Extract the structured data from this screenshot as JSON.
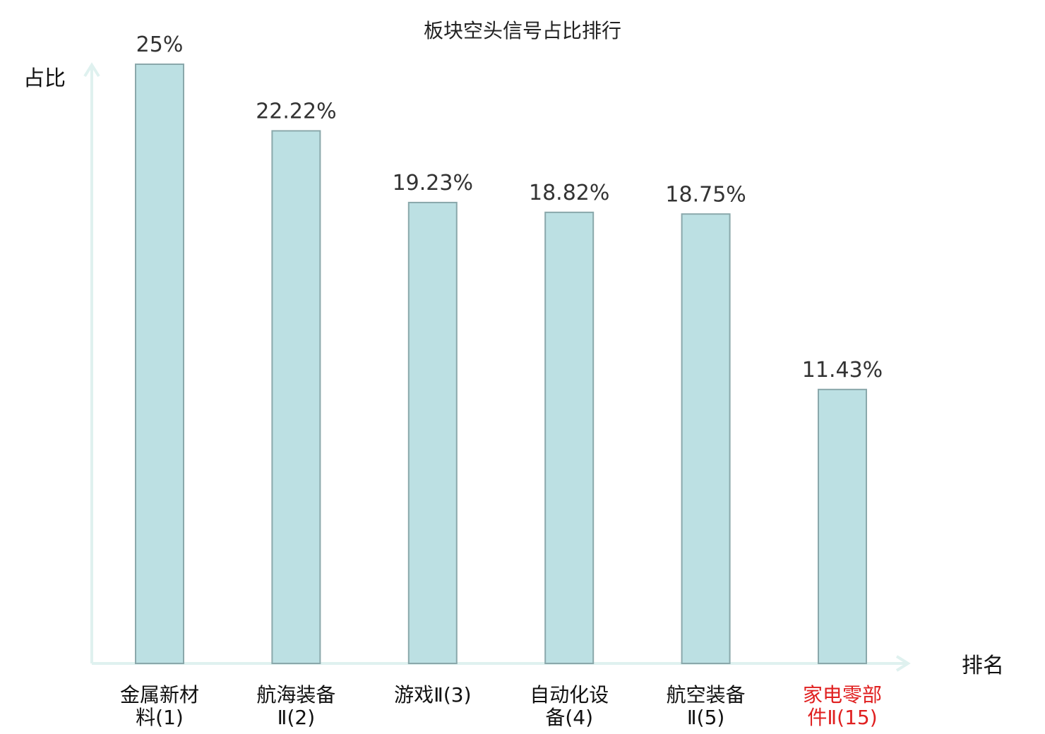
{
  "chart_data": {
    "type": "bar",
    "title": "板块空头信号占比排行",
    "ylabel": "占比",
    "xlabel": "排名",
    "ylim": [
      0,
      25
    ],
    "grid": false,
    "categories": [
      {
        "line1": "金属新材",
        "line2": "料(1)"
      },
      {
        "line1": "航海装备",
        "line2": "Ⅱ(2)"
      },
      {
        "line1": "游戏Ⅱ(3)",
        "line2": ""
      },
      {
        "line1": "自动化设",
        "line2": "备(4)"
      },
      {
        "line1": "航空装备",
        "line2": "Ⅱ(5)"
      },
      {
        "line1": "家电零部",
        "line2": "件Ⅱ(15)",
        "highlight": true
      }
    ],
    "values": [
      25,
      22.22,
      19.23,
      18.82,
      18.75,
      11.43
    ],
    "value_labels": [
      "25%",
      "22.22%",
      "19.23%",
      "18.82%",
      "18.75%",
      "11.43%"
    ]
  },
  "colors": {
    "bar_fill": "#bce0e3",
    "bar_stroke": "#8aa8ab",
    "axis": "#dff1ef",
    "highlight_label": "#e02020"
  }
}
